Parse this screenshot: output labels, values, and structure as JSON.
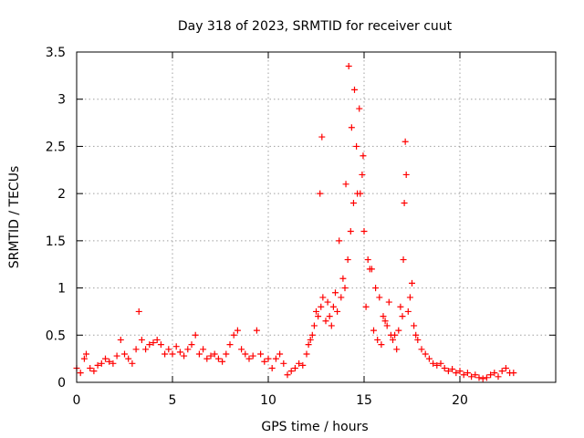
{
  "chart_data": {
    "type": "scatter",
    "title": "Day 318 of 2023, SRMTID for receiver cuut",
    "xlabel": "GPS time / hours",
    "ylabel": "SRMTID / TECUs",
    "xlim": [
      0,
      25
    ],
    "ylim": [
      0,
      3.5
    ],
    "xticks": [
      0,
      5,
      10,
      15,
      20
    ],
    "xtick_labels": [
      "0",
      "5",
      "10",
      "15",
      "20"
    ],
    "yticks": [
      0,
      0.5,
      1,
      1.5,
      2,
      2.5,
      3,
      3.5
    ],
    "ytick_labels": [
      "0",
      "0.5",
      "1",
      "1.5",
      "2",
      "2.5",
      "3",
      "3.5"
    ],
    "grid": true,
    "marker": "+",
    "series": [
      {
        "name": "SRMTID",
        "color": "#ff0000",
        "x": [
          0.0,
          0.2,
          0.4,
          0.5,
          0.7,
          0.9,
          1.1,
          1.3,
          1.5,
          1.7,
          1.9,
          2.1,
          2.3,
          2.5,
          2.7,
          2.9,
          3.1,
          3.25,
          3.4,
          3.6,
          3.8,
          4.0,
          4.2,
          4.4,
          4.6,
          4.8,
          5.0,
          5.2,
          5.4,
          5.6,
          5.8,
          6.0,
          6.2,
          6.4,
          6.6,
          6.8,
          7.0,
          7.2,
          7.4,
          7.6,
          7.8,
          8.0,
          8.2,
          8.4,
          8.6,
          8.8,
          9.0,
          9.2,
          9.4,
          9.6,
          9.8,
          10.0,
          10.2,
          10.4,
          10.6,
          10.8,
          11.0,
          11.2,
          11.4,
          11.6,
          11.8,
          12.0,
          12.2,
          12.4,
          12.6,
          12.75,
          12.85,
          13.0,
          13.2,
          13.4,
          13.6,
          13.8,
          14.0,
          14.15,
          14.3,
          14.45,
          14.6,
          14.75,
          14.9,
          15.0,
          15.2,
          15.4,
          15.6,
          15.8,
          16.0,
          16.2,
          16.4,
          16.6,
          16.8,
          17.0,
          17.1,
          17.2,
          17.4,
          17.6,
          17.8,
          18.0,
          18.2,
          18.4,
          18.6,
          18.8,
          19.0,
          19.2,
          19.4,
          19.6,
          19.8,
          20.0,
          20.2,
          20.4,
          20.6,
          20.8,
          21.0,
          21.2,
          21.4,
          21.6,
          21.8,
          22.0,
          22.2,
          22.4,
          22.6,
          22.8,
          12.1,
          12.3,
          12.5,
          12.7,
          12.8,
          13.1,
          13.3,
          13.5,
          13.7,
          13.9,
          14.05,
          14.2,
          14.35,
          14.5,
          14.65,
          14.8,
          14.95,
          15.1,
          15.3,
          15.5,
          15.7,
          15.9,
          16.1,
          16.3,
          16.5,
          16.7,
          16.9,
          17.05,
          17.15,
          17.3,
          17.5,
          17.7
        ],
        "y": [
          0.15,
          0.1,
          0.25,
          0.3,
          0.15,
          0.12,
          0.18,
          0.2,
          0.25,
          0.22,
          0.2,
          0.28,
          0.45,
          0.3,
          0.25,
          0.2,
          0.35,
          0.75,
          0.45,
          0.35,
          0.4,
          0.42,
          0.45,
          0.4,
          0.3,
          0.35,
          0.3,
          0.38,
          0.32,
          0.28,
          0.35,
          0.4,
          0.5,
          0.3,
          0.35,
          0.25,
          0.28,
          0.3,
          0.25,
          0.22,
          0.3,
          0.4,
          0.5,
          0.55,
          0.35,
          0.3,
          0.25,
          0.28,
          0.55,
          0.3,
          0.22,
          0.25,
          0.15,
          0.25,
          0.3,
          0.2,
          0.08,
          0.12,
          0.15,
          0.2,
          0.18,
          0.3,
          0.45,
          0.6,
          0.7,
          0.8,
          0.9,
          0.65,
          0.7,
          0.8,
          0.75,
          0.9,
          1.0,
          1.3,
          1.6,
          1.9,
          2.5,
          2.9,
          2.2,
          1.6,
          1.3,
          1.2,
          1.0,
          0.9,
          0.7,
          0.6,
          0.5,
          0.5,
          0.55,
          0.7,
          1.9,
          2.2,
          0.9,
          0.6,
          0.45,
          0.35,
          0.3,
          0.25,
          0.2,
          0.18,
          0.2,
          0.15,
          0.12,
          0.14,
          0.1,
          0.12,
          0.08,
          0.1,
          0.06,
          0.08,
          0.05,
          0.04,
          0.05,
          0.08,
          0.1,
          0.06,
          0.12,
          0.15,
          0.1,
          0.1,
          0.4,
          0.5,
          0.75,
          2.0,
          2.6,
          0.85,
          0.6,
          0.95,
          1.5,
          1.1,
          2.1,
          3.35,
          2.7,
          3.1,
          2.0,
          2.0,
          2.4,
          0.8,
          1.2,
          0.55,
          0.45,
          0.4,
          0.65,
          0.85,
          0.45,
          0.35,
          0.8,
          1.3,
          2.55,
          0.75,
          1.05,
          0.5
        ]
      }
    ]
  }
}
